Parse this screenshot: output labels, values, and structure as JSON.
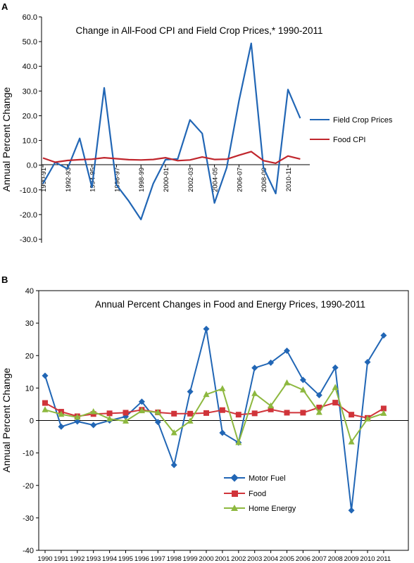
{
  "chart_data": [
    {
      "panel_label": "A",
      "type": "line",
      "title": "Change in All-Food CPI and Field Crop Prices,* 1990-2011",
      "xlabel": "",
      "ylabel": "Annual Percent Change",
      "ylim": [
        -30,
        60
      ],
      "yticks": [
        "60.0",
        "50.0",
        "40.0",
        "30.0",
        "20.0",
        "10.0",
        "0.0",
        "-10.0",
        "-20.0",
        "-30.0"
      ],
      "xtick_labels": [
        "1990-91",
        "1992-93",
        "1994-95",
        "1996-97",
        "1998-99",
        "2000-01",
        "2002-03",
        "2004-05",
        "2006-07",
        "2008-09",
        "2010-11"
      ],
      "x": [
        "1990-91",
        "1991-92",
        "1992-93",
        "1993-94",
        "1994-95",
        "1995-96",
        "1996-97",
        "1997-98",
        "1998-99",
        "1999-00",
        "2000-01",
        "2001-02",
        "2002-03",
        "2003-04",
        "2004-05",
        "2005-06",
        "2006-07",
        "2007-08",
        "2008-09",
        "2009-10",
        "2010-11",
        "2011-12"
      ],
      "legend_position": "right",
      "series": [
        {
          "name": "Field Crop Prices",
          "color": "#2166b5",
          "values": [
            -7.5,
            1.2,
            -1.5,
            10.8,
            -9,
            31.3,
            -8,
            -14.5,
            -22,
            -7.5,
            2.2,
            2.5,
            18.3,
            12.8,
            -15.3,
            -1,
            26,
            49.3,
            -1,
            -11.5,
            30.6,
            19
          ]
        },
        {
          "name": "Food CPI",
          "color": "#c0262d",
          "values": [
            2.9,
            1.2,
            1.9,
            2.2,
            2.4,
            3.0,
            2.6,
            2.2,
            2.1,
            2.3,
            3.0,
            1.8,
            2.1,
            3.3,
            2.3,
            2.4,
            4.0,
            5.5,
            1.8,
            0.8,
            3.7,
            2.5
          ]
        }
      ]
    },
    {
      "panel_label": "B",
      "type": "line",
      "title": "Annual Percent Changes in Food and Energy Prices, 1990-2011",
      "xlabel": "",
      "ylabel": "Annual Percent Change",
      "ylim": [
        -40,
        40
      ],
      "yticks": [
        "40",
        "30",
        "20",
        "10",
        "0",
        "-10",
        "-20",
        "-30",
        "-40"
      ],
      "categories": [
        "1990",
        "1991",
        "1992",
        "1993",
        "1994",
        "1995",
        "1996",
        "1997",
        "1998",
        "1999",
        "2000",
        "2001",
        "2002",
        "2003",
        "2004",
        "2005",
        "2006",
        "2007",
        "2008",
        "2009",
        "2010",
        "2011"
      ],
      "legend_position": "bottom-center",
      "series": [
        {
          "name": "Motor Fuel",
          "color": "#2166b5",
          "marker": "diamond",
          "values": [
            13.8,
            -1.9,
            -0.3,
            -1.4,
            0,
            1.2,
            5.8,
            -0.5,
            -13.7,
            8.9,
            28.2,
            -3.8,
            -6.8,
            16.2,
            17.8,
            21.5,
            12.5,
            7.8,
            16.3,
            -27.7,
            18.0,
            26.2
          ]
        },
        {
          "name": "Food",
          "color": "#d0343a",
          "marker": "square",
          "values": [
            5.4,
            2.7,
            1.3,
            2.0,
            2.2,
            2.4,
            3.3,
            2.5,
            2.1,
            2.1,
            2.3,
            3.2,
            1.8,
            2.2,
            3.4,
            2.4,
            2.4,
            4.0,
            5.5,
            1.8,
            0.8,
            3.7
          ]
        },
        {
          "name": "Home Energy",
          "color": "#8db83f",
          "marker": "triangle",
          "values": [
            3.3,
            1.9,
            1.0,
            2.7,
            0.5,
            -0.2,
            3.0,
            2.5,
            -3.8,
            -0.2,
            8.0,
            9.8,
            -6.8,
            8.3,
            4.5,
            11.6,
            9.4,
            2.5,
            10.2,
            -6.6,
            0.5,
            2.2
          ]
        }
      ]
    }
  ]
}
